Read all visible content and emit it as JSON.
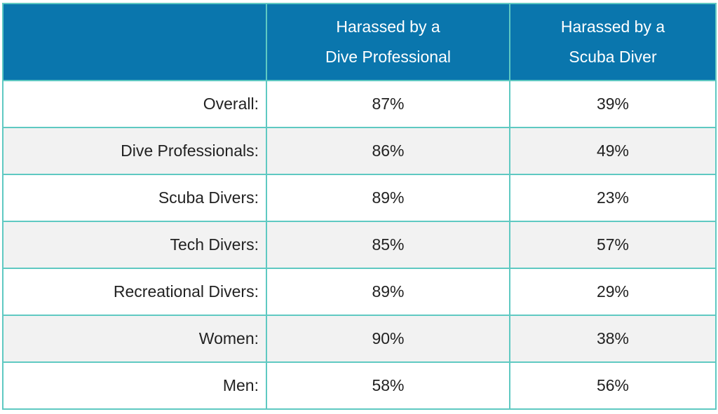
{
  "table": {
    "columns": [
      "",
      "Harassed by a Dive Professional",
      "Harassed by a Scuba Diver"
    ],
    "header_lines": [
      [
        "",
        ""
      ],
      [
        "Harassed by a",
        "Dive Professional"
      ],
      [
        "Harassed by a",
        "Scuba Diver"
      ]
    ],
    "rows": [
      {
        "label": "Overall:",
        "dive_pro": "87%",
        "scuba_diver": "39%"
      },
      {
        "label": "Dive Professionals:",
        "dive_pro": "86%",
        "scuba_diver": "49%"
      },
      {
        "label": "Scuba Divers:",
        "dive_pro": "89%",
        "scuba_diver": "23%"
      },
      {
        "label": "Tech Divers:",
        "dive_pro": "85%",
        "scuba_diver": "57%"
      },
      {
        "label": "Recreational Divers:",
        "dive_pro": "89%",
        "scuba_diver": "29%"
      },
      {
        "label": "Women:",
        "dive_pro": "90%",
        "scuba_diver": "38%"
      },
      {
        "label": "Men:",
        "dive_pro": "58%",
        "scuba_diver": "56%"
      }
    ]
  },
  "colors": {
    "header_bg": "#0a76ad",
    "header_text": "#ffffff",
    "grid_line": "#5fc9c2",
    "row_alt_bg": "#f2f2f2",
    "row_bg": "#ffffff"
  }
}
